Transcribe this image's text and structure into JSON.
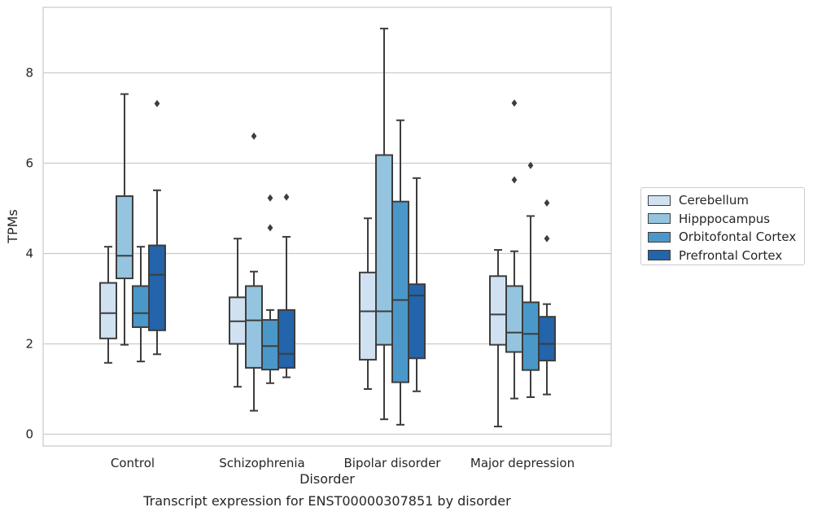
{
  "chart_data": {
    "type": "box",
    "title": "",
    "xlabel": "Disorder",
    "ylabel": "TPMs",
    "ylim": [
      -0.25,
      9.25
    ],
    "yticks": [
      0,
      2,
      4,
      6,
      8
    ],
    "grid": "horizontal",
    "legend_position": "right",
    "categories": [
      "Control",
      "Schizophrenia",
      "Bipolar disorder",
      "Major depression"
    ],
    "series": [
      {
        "name": "Cerebellum",
        "color": "#d0e1f2",
        "boxes": [
          {
            "whislo": 1.58,
            "q1": 2.12,
            "med": 2.68,
            "q3": 3.35,
            "whishi": 4.15,
            "fliers": []
          },
          {
            "whislo": 1.05,
            "q1": 2.0,
            "med": 2.5,
            "q3": 3.03,
            "whishi": 4.33,
            "fliers": []
          },
          {
            "whislo": 1.0,
            "q1": 1.65,
            "med": 2.72,
            "q3": 3.58,
            "whishi": 4.78,
            "fliers": []
          },
          {
            "whislo": 0.17,
            "q1": 1.98,
            "med": 2.65,
            "q3": 3.5,
            "whishi": 4.08,
            "fliers": []
          }
        ]
      },
      {
        "name": "Hipppocampus",
        "color": "#94c4df",
        "boxes": [
          {
            "whislo": 1.98,
            "q1": 3.45,
            "med": 3.95,
            "q3": 5.27,
            "whishi": 7.53,
            "fliers": []
          },
          {
            "whislo": 0.52,
            "q1": 1.47,
            "med": 2.52,
            "q3": 3.28,
            "whishi": 3.6,
            "fliers": [
              6.6
            ]
          },
          {
            "whislo": 0.33,
            "q1": 1.98,
            "med": 2.72,
            "q3": 6.18,
            "whishi": 8.98,
            "fliers": []
          },
          {
            "whislo": 0.79,
            "q1": 1.82,
            "med": 2.25,
            "q3": 3.28,
            "whishi": 4.05,
            "fliers": [
              5.63,
              7.33
            ]
          }
        ]
      },
      {
        "name": "Orbitofontal Cortex",
        "color": "#4a98c9",
        "boxes": [
          {
            "whislo": 1.61,
            "q1": 2.37,
            "med": 2.68,
            "q3": 3.28,
            "whishi": 4.15,
            "fliers": []
          },
          {
            "whislo": 1.13,
            "q1": 1.43,
            "med": 1.95,
            "q3": 2.53,
            "whishi": 2.75,
            "fliers": [
              4.57,
              5.23
            ]
          },
          {
            "whislo": 0.21,
            "q1": 1.15,
            "med": 2.97,
            "q3": 5.15,
            "whishi": 6.95,
            "fliers": []
          },
          {
            "whislo": 0.82,
            "q1": 1.42,
            "med": 2.22,
            "q3": 2.92,
            "whishi": 4.83,
            "fliers": [
              5.95
            ]
          }
        ]
      },
      {
        "name": "Prefrontal Cortex",
        "color": "#2364aa",
        "boxes": [
          {
            "whislo": 1.77,
            "q1": 2.3,
            "med": 3.53,
            "q3": 4.18,
            "whishi": 5.4,
            "fliers": [
              7.32
            ]
          },
          {
            "whislo": 1.26,
            "q1": 1.47,
            "med": 1.78,
            "q3": 2.75,
            "whishi": 4.37,
            "fliers": [
              5.25
            ]
          },
          {
            "whislo": 0.95,
            "q1": 1.68,
            "med": 3.07,
            "q3": 3.32,
            "whishi": 5.67,
            "fliers": []
          },
          {
            "whislo": 0.88,
            "q1": 1.63,
            "med": 2.0,
            "q3": 2.6,
            "whishi": 2.88,
            "fliers": [
              4.33,
              5.12
            ]
          }
        ]
      }
    ]
  },
  "footer_title": "Transcript expression for ENST00000307851 by disorder"
}
